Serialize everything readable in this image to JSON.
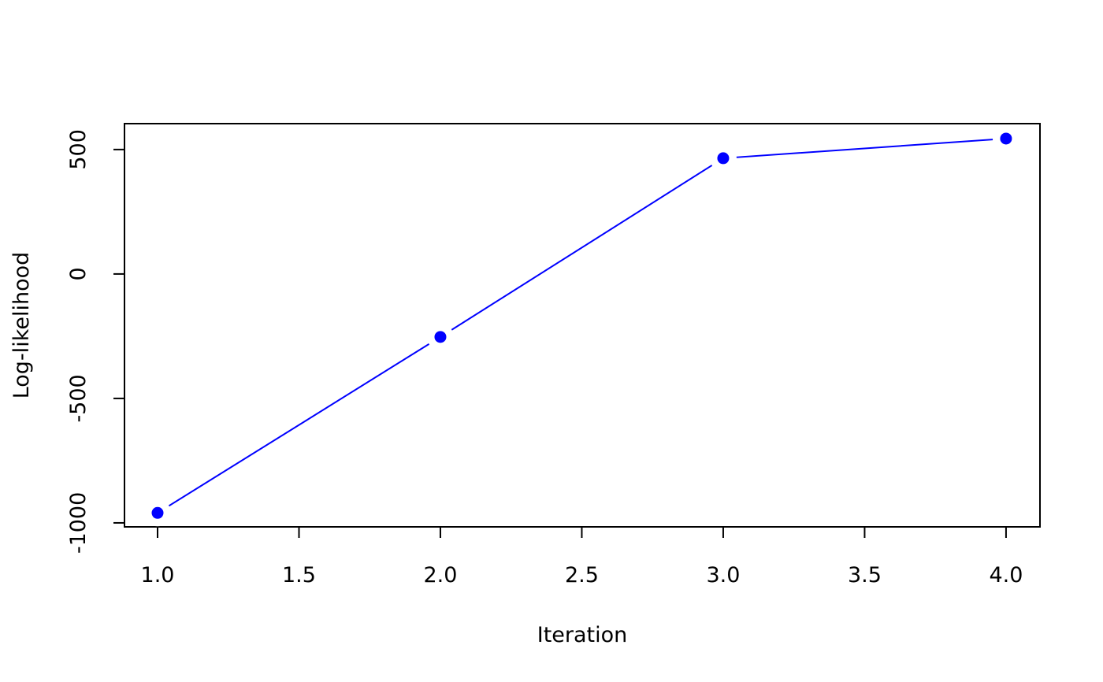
{
  "chart_data": {
    "type": "line",
    "x_label": "Iteration",
    "y_label": "Log-likelihood",
    "x": [
      1,
      2,
      3,
      4
    ],
    "series": [
      {
        "color": "#0000ff",
        "values": [
          -960,
          -253,
          465,
          544
        ]
      }
    ],
    "xlim": [
      0.883,
      4.12
    ],
    "ylim": [
      -1016,
      604
    ],
    "xticks": [
      {
        "value": 1,
        "label": "1.0"
      },
      {
        "value": 1.5,
        "label": "1.5"
      },
      {
        "value": 2,
        "label": "2.0"
      },
      {
        "value": 2.5,
        "label": "2.5"
      },
      {
        "value": 3,
        "label": "3.0"
      },
      {
        "value": 3.5,
        "label": "3.5"
      },
      {
        "value": 4,
        "label": "4.0"
      }
    ],
    "yticks": [
      -1000,
      -500,
      0,
      500
    ],
    "grid": false
  }
}
